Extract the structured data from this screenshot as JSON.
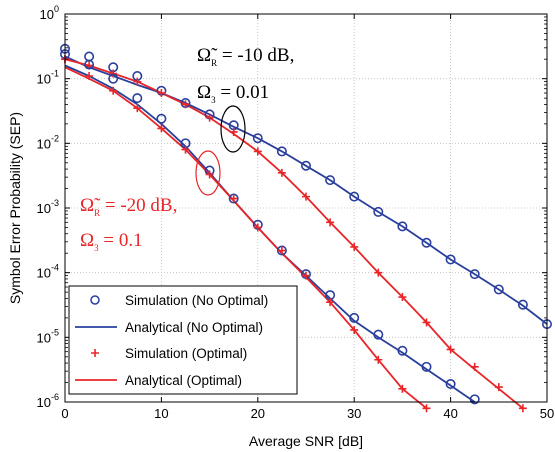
{
  "chart_data": {
    "type": "line",
    "xlabel": "Average SNR [dB]",
    "ylabel": "Symbol Error Probability (SEP)",
    "xlim": [
      0,
      50
    ],
    "ylim_log10": [
      -6,
      0
    ],
    "yscale": "log",
    "grid": true,
    "x_ticks": [
      "0",
      "10",
      "20",
      "30",
      "40",
      "50"
    ],
    "y_ticks": [
      {
        "base": "10",
        "exp": "-6"
      },
      {
        "base": "10",
        "exp": "-5"
      },
      {
        "base": "10",
        "exp": "-4"
      },
      {
        "base": "10",
        "exp": "-3"
      },
      {
        "base": "10",
        "exp": "-2"
      },
      {
        "base": "10",
        "exp": "-1"
      },
      {
        "base": "10",
        "exp": "0"
      }
    ],
    "legend_position": "bottom-left",
    "legend": [
      {
        "label": "Simulation (No Optimal)",
        "marker": "circle",
        "color": "#2a3f9c"
      },
      {
        "label": "Analytical (No Optimal)",
        "marker": "line",
        "color": "#2a3f9c"
      },
      {
        "label": "Simulation (Optimal)",
        "marker": "plus",
        "color": "#e8262a"
      },
      {
        "label": "Analytical (Optimal)",
        "marker": "line",
        "color": "#e8262a"
      }
    ],
    "colors": {
      "no_optimal": "#2a3f9c",
      "optimal": "#e8262a"
    },
    "annotations": [
      {
        "line1_symbol": "Ω̃",
        "line1_sub": "R",
        "line1_rest": " = -10 dB,",
        "line2_symbol": "Ω",
        "line2_sub": "3",
        "line2_rest": " = 0.01",
        "color": "#000000"
      },
      {
        "line1_symbol": "Ω̃",
        "line1_sub": "R",
        "line1_rest": " = -20 dB,",
        "line2_symbol": "Ω",
        "line2_sub": "3",
        "line2_rest": " = 0.1",
        "color": "#e8262a"
      }
    ],
    "series": [
      {
        "group": "-10 dB",
        "kind": "Simulation (No Optimal)",
        "x": [
          0,
          2.5,
          5,
          7.5,
          10,
          12.5,
          15,
          17.5,
          20,
          22.5,
          25,
          27.5,
          30,
          32.5,
          35,
          37.5,
          40,
          42.5,
          45,
          47.5,
          50
        ],
        "y": [
          0.29,
          0.22,
          0.15,
          0.11,
          0.065,
          0.042,
          0.028,
          0.019,
          0.012,
          0.0075,
          0.0045,
          0.0027,
          0.0015,
          0.00087,
          0.00052,
          0.00029,
          0.00016,
          9.5e-05,
          5.5e-05,
          3.2e-05,
          1.6e-05
        ]
      },
      {
        "group": "-10 dB",
        "kind": "Analytical (No Optimal)",
        "x": [
          0,
          2.5,
          5,
          7.5,
          10,
          12.5,
          15,
          17.5,
          20,
          22.5,
          25,
          27.5,
          30,
          32.5,
          35,
          37.5,
          40,
          42.5,
          45,
          47.5,
          50
        ],
        "y": [
          0.22,
          0.15,
          0.11,
          0.08,
          0.06,
          0.042,
          0.028,
          0.018,
          0.012,
          0.0075,
          0.0045,
          0.0027,
          0.0015,
          0.00087,
          0.00052,
          0.00029,
          0.00016,
          9.5e-05,
          5.5e-05,
          3.1e-05,
          1.6e-05
        ]
      },
      {
        "group": "-10 dB",
        "kind": "Simulation (Optimal)",
        "x": [
          0,
          2.5,
          5,
          7.5,
          10,
          12.5,
          15,
          17.5,
          20,
          22.5,
          25,
          27.5,
          30,
          32.5,
          35,
          37.5,
          40,
          42.5,
          45,
          47.5
        ],
        "y": [
          0.2,
          0.16,
          0.12,
          0.09,
          0.06,
          0.04,
          0.025,
          0.015,
          0.0075,
          0.0035,
          0.0015,
          0.0006,
          0.00025,
          0.0001,
          4.2e-05,
          1.7e-05,
          6.5e-06,
          3.5e-06,
          1.7e-06,
          8e-07
        ]
      },
      {
        "group": "-10 dB",
        "kind": "Analytical (Optimal)",
        "x": [
          0,
          2.5,
          5,
          7.5,
          10,
          12.5,
          15,
          17.5,
          20,
          22.5,
          25,
          27.5,
          30,
          32.5,
          35,
          37.5,
          40,
          42.5,
          45,
          47.5
        ],
        "y": [
          0.2,
          0.16,
          0.12,
          0.09,
          0.06,
          0.04,
          0.025,
          0.014,
          0.0075,
          0.0035,
          0.0015,
          0.0006,
          0.00025,
          0.0001,
          4.2e-05,
          1.7e-05,
          6.5e-06,
          3.2e-06,
          1.6e-06,
          8e-07
        ]
      },
      {
        "group": "-20 dB",
        "kind": "Simulation (No Optimal)",
        "x": [
          0,
          2.5,
          5,
          7.5,
          10,
          12.5,
          15,
          17.5,
          20,
          22.5,
          25,
          27.5,
          30,
          32.5,
          35,
          37.5,
          40,
          42.5
        ],
        "y": [
          0.24,
          0.165,
          0.1,
          0.05,
          0.024,
          0.01,
          0.0038,
          0.0014,
          0.00055,
          0.00022,
          9.5e-05,
          4.5e-05,
          2e-05,
          1.1e-05,
          6.2e-06,
          3.5e-06,
          1.9e-06,
          1.1e-06
        ]
      },
      {
        "group": "-20 dB",
        "kind": "Analytical (No Optimal)",
        "x": [
          0,
          2.5,
          5,
          7.5,
          10,
          12.5,
          15,
          17.5,
          20,
          22.5,
          25,
          27.5,
          30,
          32.5,
          35,
          37.5,
          40,
          42.5
        ],
        "y": [
          0.16,
          0.11,
          0.07,
          0.04,
          0.02,
          0.009,
          0.0035,
          0.0013,
          0.0005,
          0.0002,
          9e-05,
          4e-05,
          1.8e-05,
          1e-05,
          5.8e-06,
          3.2e-06,
          1.8e-06,
          1e-06
        ]
      },
      {
        "group": "-20 dB",
        "kind": "Simulation (Optimal)",
        "x": [
          0,
          2.5,
          5,
          7.5,
          10,
          12.5,
          15,
          17.5,
          20,
          22.5,
          25,
          27.5,
          30,
          32.5,
          35,
          37.5
        ],
        "y": [
          0.2,
          0.11,
          0.065,
          0.035,
          0.017,
          0.008,
          0.0033,
          0.0014,
          0.0005,
          0.00022,
          9e-05,
          3.5e-05,
          1.3e-05,
          4.5e-06,
          1.6e-06,
          8e-07
        ]
      },
      {
        "group": "-20 dB",
        "kind": "Analytical (Optimal)",
        "x": [
          0,
          2.5,
          5,
          7.5,
          10,
          12.5,
          15,
          17.5,
          20,
          22.5,
          25,
          27.5,
          30,
          32.5,
          35,
          37.5
        ],
        "y": [
          0.15,
          0.1,
          0.065,
          0.035,
          0.017,
          0.008,
          0.0033,
          0.0013,
          0.0005,
          0.0002,
          8.5e-05,
          3.5e-05,
          1.3e-05,
          4.5e-06,
          1.6e-06,
          8e-07
        ]
      }
    ]
  }
}
